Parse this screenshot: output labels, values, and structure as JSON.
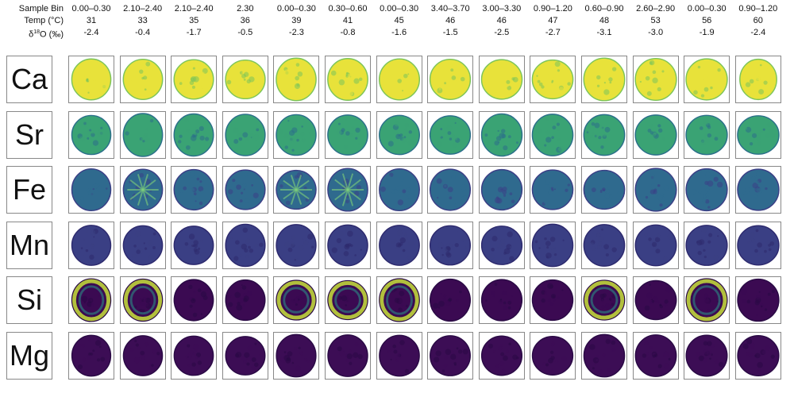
{
  "header_labels": {
    "sample_bin": "Sample Bin",
    "temp": "Temp (°C)",
    "d18o_prefix": "δ",
    "d18o_sup": "18",
    "d18o_suffix": "O (‰)"
  },
  "columns": [
    {
      "bin": "0.00–0.30",
      "temp": "31",
      "d18o": "-2.4"
    },
    {
      "bin": "2.10–2.40",
      "temp": "33",
      "d18o": "-0.4"
    },
    {
      "bin": "2.10–2.40",
      "temp": "35",
      "d18o": "-1.7"
    },
    {
      "bin": "2.30",
      "temp": "36",
      "d18o": "-0.5"
    },
    {
      "bin": "0.00–0.30",
      "temp": "39",
      "d18o": "-2.3"
    },
    {
      "bin": "0.30–0.60",
      "temp": "41",
      "d18o": "-0.8"
    },
    {
      "bin": "0.00–0.30",
      "temp": "45",
      "d18o": "-1.6"
    },
    {
      "bin": "3.40–3.70",
      "temp": "46",
      "d18o": "-1.5"
    },
    {
      "bin": "3.00–3.30",
      "temp": "46",
      "d18o": "-2.5"
    },
    {
      "bin": "0.90–1.20",
      "temp": "47",
      "d18o": "-2.7"
    },
    {
      "bin": "0.60–0.90",
      "temp": "48",
      "d18o": "-3.1"
    },
    {
      "bin": "2.60–2.90",
      "temp": "53",
      "d18o": "-3.0"
    },
    {
      "bin": "0.00–0.30",
      "temp": "56",
      "d18o": "-1.9"
    },
    {
      "bin": "0.90–1.20",
      "temp": "60",
      "d18o": "-2.4"
    }
  ],
  "rows": [
    {
      "element": "Ca",
      "base": "#e8e23a",
      "edge": "#7cc45a",
      "pattern": "high"
    },
    {
      "element": "Sr",
      "base": "#3aa374",
      "edge": "#2b6f8a",
      "pattern": "mid"
    },
    {
      "element": "Fe",
      "base": "#2f6a8e",
      "edge": "#3b3f86",
      "pattern": "midlow"
    },
    {
      "element": "Mn",
      "base": "#3a3f84",
      "edge": "#2d2a6e",
      "pattern": "low"
    },
    {
      "element": "Si",
      "base": "#3b0a52",
      "edge": "#2a0a45",
      "pattern": "verylow"
    },
    {
      "element": "Mg",
      "base": "#3c0d55",
      "edge": "#2a0a45",
      "pattern": "verylow"
    }
  ]
}
